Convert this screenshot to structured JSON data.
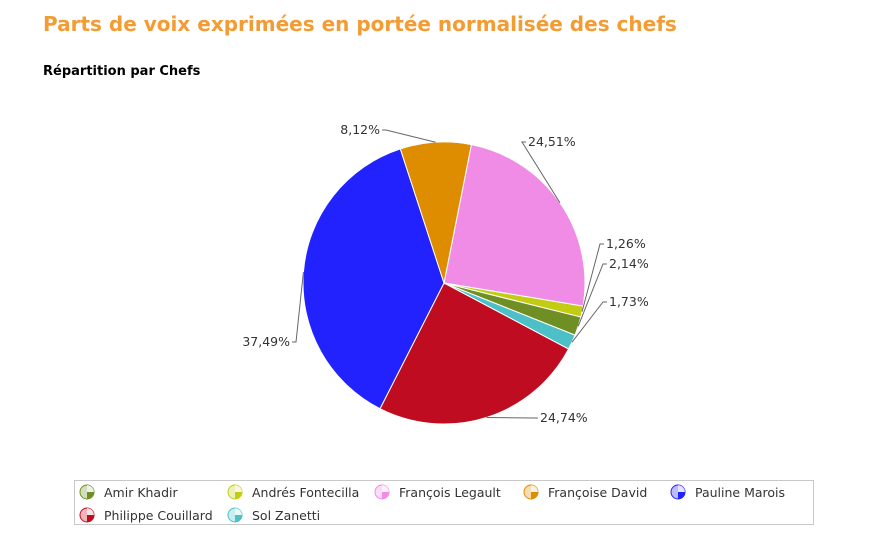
{
  "header": {
    "title": "Parts de voix exprimées en portée normalisée des chefs",
    "subtitle": "Répartition par Chefs"
  },
  "chart_data": {
    "type": "pie",
    "title": "Parts de voix exprimées en portée normalisée des chefs",
    "subtitle": "Répartition par Chefs",
    "slices": [
      {
        "name": "François Legault",
        "value": 24.51,
        "label": "24,51%",
        "color": "#f08ce6"
      },
      {
        "name": "Andrés Fontecilla",
        "value": 1.26,
        "label": "1,26%",
        "color": "#c2cc12"
      },
      {
        "name": "Amir Khadir",
        "value": 2.14,
        "label": "2,14%",
        "color": "#6f8f24"
      },
      {
        "name": "Sol Zanetti",
        "value": 1.73,
        "label": "1,73%",
        "color": "#4dbfc6"
      },
      {
        "name": "Philippe Couillard",
        "value": 24.74,
        "label": "24,74%",
        "color": "#c00c20"
      },
      {
        "name": "Pauline Marois",
        "value": 37.49,
        "label": "37,49%",
        "color": "#2222ff"
      },
      {
        "name": "Françoise David",
        "value": 8.12,
        "label": "8,12%",
        "color": "#de8c00"
      }
    ],
    "legend_position": "bottom",
    "legend_order": [
      "Amir Khadir",
      "Andrés Fontecilla",
      "François Legault",
      "Françoise David",
      "Pauline Marois",
      "Philippe Couillard",
      "Sol Zanetti"
    ]
  }
}
